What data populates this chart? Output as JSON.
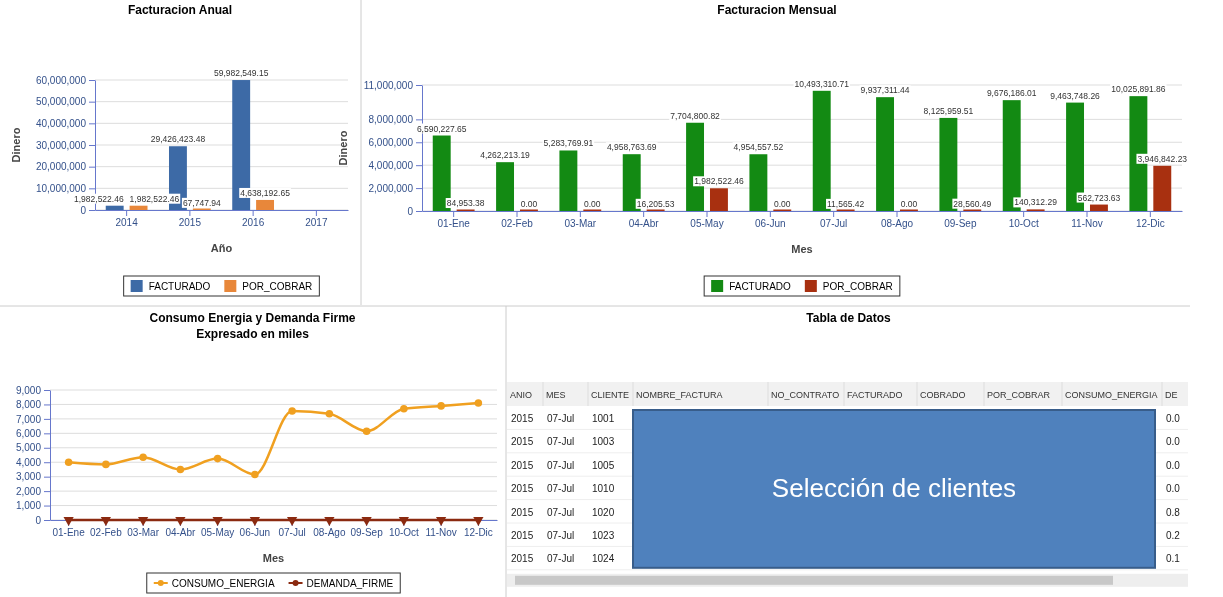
{
  "chart_data": [
    {
      "type": "bar",
      "title": "Facturacion Anual",
      "xlabel": "Año",
      "ylabel": "Dinero",
      "categories": [
        "2014",
        "2015",
        "2016",
        "2017"
      ],
      "series": [
        {
          "name": "FACTURADO",
          "color": "#3d6aa6",
          "values": [
            1982522.46,
            29426423.48,
            59982549.15,
            null
          ],
          "value_labels": [
            "1,982,522.46",
            "29,426,423.48",
            "59,982,549.15",
            null
          ]
        },
        {
          "name": "POR_COBRAR",
          "color": "#e8873a",
          "values": [
            1982522.46,
            67747.94,
            4638192.65,
            null
          ],
          "value_labels": [
            "1,982,522.46",
            "67,747.94",
            "4,638,192.65",
            null
          ]
        }
      ],
      "ylim": [
        0,
        60000000
      ],
      "yticks": [
        {
          "value": 0,
          "label": "0"
        },
        {
          "value": 10000000,
          "label": "10,000,000"
        },
        {
          "value": 20000000,
          "label": "20,000,000"
        },
        {
          "value": 30000000,
          "label": "30,000,000"
        },
        {
          "value": 40000000,
          "label": "40,000,000"
        },
        {
          "value": 50000000,
          "label": "50,000,000"
        },
        {
          "value": 60000000,
          "label": "60,000,000"
        }
      ],
      "grid": "y",
      "legend": "bottom"
    },
    {
      "type": "bar",
      "title": "Facturacion Mensual",
      "xlabel": "Mes",
      "ylabel": "Dinero",
      "categories": [
        "01-Ene",
        "02-Feb",
        "03-Mar",
        "04-Abr",
        "05-May",
        "06-Jun",
        "07-Jul",
        "08-Ago",
        "09-Sep",
        "10-Oct",
        "11-Nov",
        "12-Dic"
      ],
      "series": [
        {
          "name": "FACTURADO",
          "color": "#138a13",
          "values": [
            6590227.65,
            4262213.19,
            5283769.91,
            4958763.69,
            7704800.82,
            4954557.52,
            10493310.71,
            9937311.44,
            8125959.51,
            9676186.01,
            9463748.26,
            10025891.86
          ],
          "value_labels": [
            "6,590,227.65",
            "4,262,213.19",
            "5,283,769.91",
            "4,958,763.69",
            "7,704,800.82",
            "4,954,557.52",
            "10,493,310.71",
            "9,937,311.44",
            "8,125,959.51",
            "9,676,186.01",
            "9,463,748.26",
            "10,025,891.86"
          ]
        },
        {
          "name": "POR_COBRAR",
          "color": "#a83010",
          "values": [
            84953.38,
            0,
            0,
            16205.53,
            1982522.46,
            0,
            11565.42,
            0,
            28560.49,
            140312.29,
            562723.63,
            3946842.23
          ],
          "value_labels": [
            "84,953.38",
            "0.00",
            "0.00",
            "16,205.53",
            "1,982,522.46",
            "0.00",
            "11,565.42",
            "0.00",
            "28,560.49",
            "140,312.29",
            "562,723.63",
            "3,946,842.23"
          ]
        }
      ],
      "ylim": [
        0,
        11000000
      ],
      "yticks": [
        {
          "value": 0,
          "label": "0"
        },
        {
          "value": 2000000,
          "label": "2,000,000"
        },
        {
          "value": 4000000,
          "label": "4,000,000"
        },
        {
          "value": 6000000,
          "label": "6,000,000"
        },
        {
          "value": 8000000,
          "label": "8,000,000"
        },
        {
          "value": 11000000,
          "label": "11,000,000"
        }
      ],
      "grid": "y",
      "legend": "bottom"
    },
    {
      "type": "line",
      "title": "Consumo Energia y Demanda Firme",
      "subtitle": "Expresado en miles",
      "xlabel": "Mes",
      "categories": [
        "01-Ene",
        "02-Feb",
        "03-Mar",
        "04-Abr",
        "05-May",
        "06-Jun",
        "07-Jul",
        "08-Ago",
        "09-Sep",
        "10-Oct",
        "11-Nov",
        "12-Dic"
      ],
      "series": [
        {
          "name": "CONSUMO_ENERGIA",
          "color": "#f0a020",
          "marker": "circle",
          "values": [
            4000,
            3850,
            4350,
            3500,
            4250,
            3150,
            7550,
            7350,
            6150,
            7700,
            7900,
            8100
          ]
        },
        {
          "name": "DEMANDA_FIRME",
          "color": "#8b2a10",
          "marker": "triangle",
          "values": [
            0,
            0,
            0,
            0,
            0,
            0,
            0,
            0,
            0,
            0,
            0,
            0
          ]
        }
      ],
      "ylim": [
        0,
        9000
      ],
      "yticks": [
        {
          "value": 0,
          "label": "0"
        },
        {
          "value": 1000,
          "label": "1,000"
        },
        {
          "value": 2000,
          "label": "2,000"
        },
        {
          "value": 3000,
          "label": "3,000"
        },
        {
          "value": 4000,
          "label": "4,000"
        },
        {
          "value": 5000,
          "label": "5,000"
        },
        {
          "value": 6000,
          "label": "6,000"
        },
        {
          "value": 7000,
          "label": "7,000"
        },
        {
          "value": 8000,
          "label": "8,000"
        },
        {
          "value": 9000,
          "label": "9,000"
        }
      ],
      "grid": "y",
      "legend": "bottom",
      "line_style": "solid"
    },
    {
      "type": "other",
      "title": "Tabla de Datos",
      "categories": [
        "ANIO",
        "MES",
        "CLIENTE",
        "NOMBRE_FACTURA",
        "NO_CONTRATO",
        "FACTURADO",
        "COBRADO",
        "POR_COBRAR",
        "CONSUMO_ENERGIA",
        "DE"
      ],
      "cells": [
        [
          "2015",
          "07-Jul",
          "1001",
          null,
          null,
          null,
          null,
          null,
          null,
          "0.0"
        ],
        [
          "2015",
          "07-Jul",
          "1003",
          null,
          null,
          null,
          null,
          null,
          null,
          "0.0"
        ],
        [
          "2015",
          "07-Jul",
          "1005",
          null,
          null,
          null,
          null,
          null,
          null,
          "0.0"
        ],
        [
          "2015",
          "07-Jul",
          "1010",
          null,
          null,
          null,
          null,
          null,
          null,
          "0.0"
        ],
        [
          "2015",
          "07-Jul",
          "1020",
          null,
          null,
          null,
          null,
          null,
          null,
          "0.8"
        ],
        [
          "2015",
          "07-Jul",
          "1023",
          null,
          null,
          null,
          null,
          null,
          null,
          "0.2"
        ],
        [
          "2015",
          "07-Jul",
          "1024",
          null,
          null,
          null,
          null,
          null,
          null,
          "0.1"
        ]
      ],
      "annotations": [
        "Selección de clientes"
      ]
    }
  ]
}
